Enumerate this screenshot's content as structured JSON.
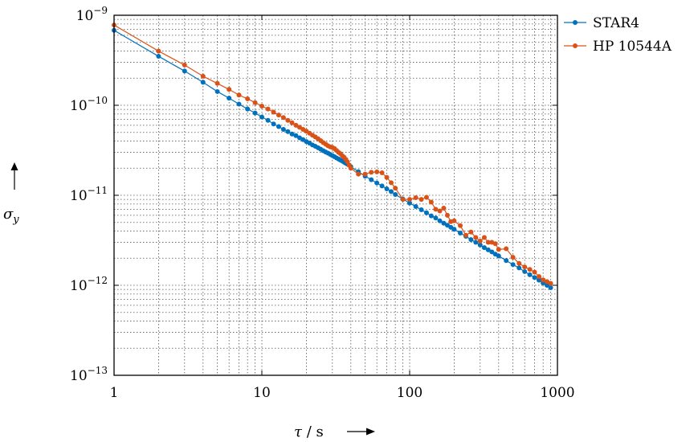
{
  "chart_data": {
    "type": "line",
    "x_scale": "log",
    "y_scale": "log",
    "xlim": [
      1,
      1000
    ],
    "ylim": [
      1e-13,
      1e-09
    ],
    "grid": true,
    "legend_position": "outside-top-right",
    "xlabel": "τ / s",
    "ylabel": "σ_y",
    "x_ticks": [
      {
        "value": 1,
        "label": "1"
      },
      {
        "value": 10,
        "label": "10"
      },
      {
        "value": 100,
        "label": "100"
      },
      {
        "value": 1000,
        "label": "1000"
      }
    ],
    "y_ticks": [
      {
        "value": 1e-09,
        "base": "10",
        "exp": "−9"
      },
      {
        "value": 1e-10,
        "base": "10",
        "exp": "−10"
      },
      {
        "value": 1e-11,
        "base": "10",
        "exp": "−11"
      },
      {
        "value": 1e-12,
        "base": "10",
        "exp": "−12"
      },
      {
        "value": 1e-13,
        "base": "10",
        "exp": "−13"
      }
    ],
    "series": [
      {
        "name": "STAR4",
        "color": "#0072bd",
        "x": [
          1,
          2,
          3,
          4,
          5,
          6,
          7,
          8,
          9,
          10,
          11,
          12,
          13,
          14,
          15,
          16,
          17,
          18,
          19,
          20,
          21,
          22,
          23,
          24,
          25,
          26,
          27,
          28,
          29,
          30,
          31,
          32,
          33,
          34,
          35,
          36,
          37,
          38,
          39,
          40,
          45,
          50,
          55,
          60,
          65,
          70,
          75,
          80,
          90,
          100,
          110,
          120,
          130,
          140,
          150,
          160,
          170,
          180,
          190,
          200,
          220,
          240,
          260,
          280,
          300,
          320,
          340,
          360,
          380,
          400,
          450,
          500,
          550,
          600,
          650,
          700,
          750,
          800,
          850,
          900
        ],
        "y": [
          6.8e-10,
          3.5e-10,
          2.4e-10,
          1.8e-10,
          1.42e-10,
          1.2e-10,
          1.03e-10,
          9.1e-11,
          8.2e-11,
          7.4e-11,
          6.8e-11,
          6.2e-11,
          5.8e-11,
          5.4e-11,
          5.1e-11,
          4.8e-11,
          4.6e-11,
          4.35e-11,
          4.15e-11,
          3.95e-11,
          3.8e-11,
          3.62e-11,
          3.5e-11,
          3.37e-11,
          3.25e-11,
          3.13e-11,
          3.03e-11,
          2.94e-11,
          2.85e-11,
          2.76e-11,
          2.68e-11,
          2.6e-11,
          2.53e-11,
          2.46e-11,
          2.4e-11,
          2.33e-11,
          2.27e-11,
          2.21e-11,
          2.15e-11,
          2.08e-11,
          1.83e-11,
          1.63e-11,
          1.49e-11,
          1.37e-11,
          1.27e-11,
          1.18e-11,
          1.1e-11,
          1.02e-11,
          9.1e-12,
          8.2e-12,
          7.5e-12,
          6.9e-12,
          6.4e-12,
          5.9e-12,
          5.6e-12,
          5.2e-12,
          4.9e-12,
          4.65e-12,
          4.4e-12,
          4.2e-12,
          3.8e-12,
          3.5e-12,
          3.22e-12,
          3e-12,
          2.8e-12,
          2.62e-12,
          2.48e-12,
          2.35e-12,
          2.22e-12,
          2.12e-12,
          1.88e-12,
          1.7e-12,
          1.56e-12,
          1.42e-12,
          1.31e-12,
          1.22e-12,
          1.14e-12,
          1.06e-12,
          1e-12,
          9.4e-13
        ]
      },
      {
        "name": "HP 10544A",
        "color": "#d95319",
        "x": [
          1,
          2,
          3,
          4,
          5,
          6,
          7,
          8,
          9,
          10,
          11,
          12,
          13,
          14,
          15,
          16,
          17,
          18,
          19,
          20,
          21,
          22,
          23,
          24,
          25,
          26,
          27,
          28,
          29,
          30,
          31,
          32,
          33,
          34,
          35,
          36,
          37,
          38,
          39,
          40,
          45,
          50,
          55,
          60,
          65,
          70,
          75,
          80,
          90,
          100,
          110,
          120,
          130,
          140,
          150,
          160,
          170,
          180,
          190,
          200,
          220,
          240,
          260,
          280,
          300,
          320,
          340,
          360,
          380,
          400,
          450,
          500,
          550,
          600,
          650,
          700,
          750,
          800,
          850,
          900
        ],
        "y": [
          7.8e-10,
          4e-10,
          2.8e-10,
          2.1e-10,
          1.75e-10,
          1.5e-10,
          1.3e-10,
          1.18e-10,
          1.07e-10,
          9.8e-11,
          9.1e-11,
          8.4e-11,
          7.8e-11,
          7.3e-11,
          6.8e-11,
          6.4e-11,
          6e-11,
          5.7e-11,
          5.4e-11,
          5.15e-11,
          4.9e-11,
          4.65e-11,
          4.45e-11,
          4.25e-11,
          4.05e-11,
          3.85e-11,
          3.7e-11,
          3.55e-11,
          3.45e-11,
          3.4e-11,
          3.3e-11,
          3.15e-11,
          3e-11,
          2.9e-11,
          2.75e-11,
          2.65e-11,
          2.5e-11,
          2.35e-11,
          2.15e-11,
          2e-11,
          1.72e-11,
          1.72e-11,
          1.8e-11,
          1.82e-11,
          1.78e-11,
          1.58e-11,
          1.38e-11,
          1.2e-11,
          9e-12,
          9e-12,
          9.4e-12,
          9e-12,
          9.5e-12,
          8.4e-12,
          7e-12,
          6.7e-12,
          7.2e-12,
          6e-12,
          5.1e-12,
          5.2e-12,
          4.6e-12,
          3.6e-12,
          3.9e-12,
          3.4e-12,
          3.1e-12,
          3.4e-12,
          3e-12,
          3e-12,
          2.9e-12,
          2.5e-12,
          2.55e-12,
          2.05e-12,
          1.75e-12,
          1.6e-12,
          1.5e-12,
          1.4e-12,
          1.25e-12,
          1.15e-12,
          1.1e-12,
          1.05e-12
        ]
      }
    ]
  }
}
